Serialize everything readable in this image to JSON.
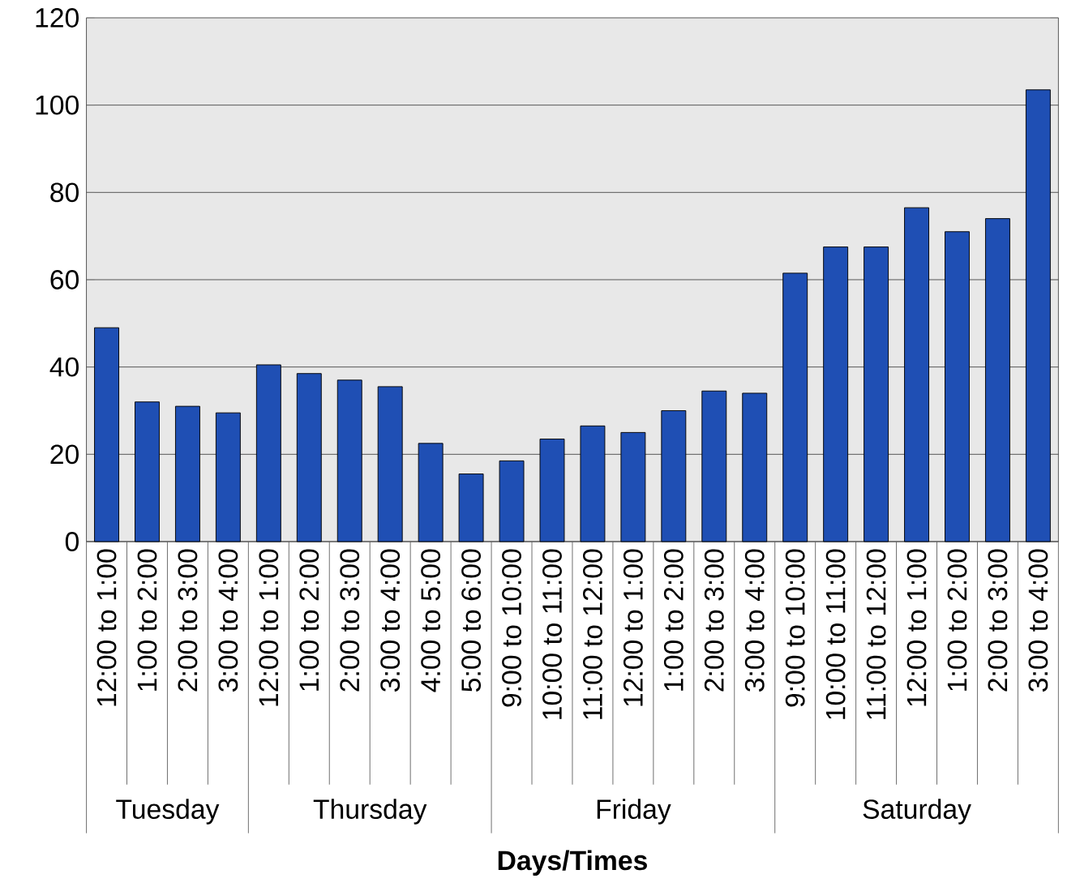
{
  "chart_data": {
    "type": "bar",
    "xlabel": "**Days/Times**",
    "categories": [
      "12:00 to 1:00",
      "1:00 to 2:00",
      "2:00 to 3:00",
      "3:00 to 4:00",
      "12:00 to 1:00",
      "1:00 to 2:00",
      "2:00 to 3:00",
      "3:00 to 4:00",
      "4:00 to 5:00",
      "5:00 to 6:00",
      "9:00 to 10:00",
      "10:00 to 11:00",
      "11:00 to 12:00",
      "12:00 to 1:00",
      "1:00 to 2:00",
      "2:00 to 3:00",
      "3:00 to 4:00",
      "9:00 to 10:00",
      "10:00 to 11:00",
      "11:00 to 12:00",
      "12:00 to 1:00",
      "1:00 to 2:00",
      "2:00 to 3:00",
      "3:00 to 4:00"
    ],
    "values": [
      49,
      32,
      31,
      29.5,
      40.5,
      38.5,
      37,
      35.5,
      22.5,
      15.5,
      18.5,
      23.5,
      26.5,
      25,
      30,
      34.5,
      34,
      61.5,
      67.5,
      67.5,
      76.5,
      71,
      74,
      103.5
    ],
    "color": "#1f4fb4",
    "ylim": [
      0,
      120
    ],
    "yticks": [
      0,
      20,
      40,
      60,
      80,
      100,
      120
    ],
    "grid": "y",
    "annotations": [
      "Tuesday",
      "Thursday",
      "Friday",
      "Saturday"
    ]
  }
}
